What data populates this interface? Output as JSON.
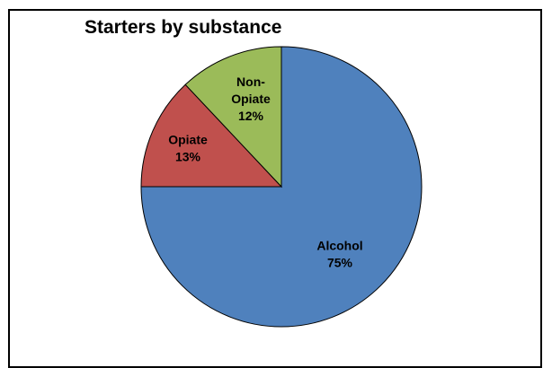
{
  "chart_data": {
    "type": "pie",
    "title": "Starters by substance",
    "categories": [
      "Alcohol",
      "Opiate",
      "Non-Opiate"
    ],
    "values": [
      75,
      13,
      12
    ],
    "value_labels": [
      "75%",
      "13%",
      "12%"
    ],
    "label_lines": [
      [
        "Alcohol",
        "75%"
      ],
      [
        "Opiate",
        "13%"
      ],
      [
        "Non-",
        "Opiate",
        "12%"
      ]
    ],
    "colors": [
      "#4F81BD",
      "#C0504D",
      "#9BBB59"
    ],
    "start_angle_deg": 0,
    "direction": "clockwise",
    "legend": "none"
  }
}
